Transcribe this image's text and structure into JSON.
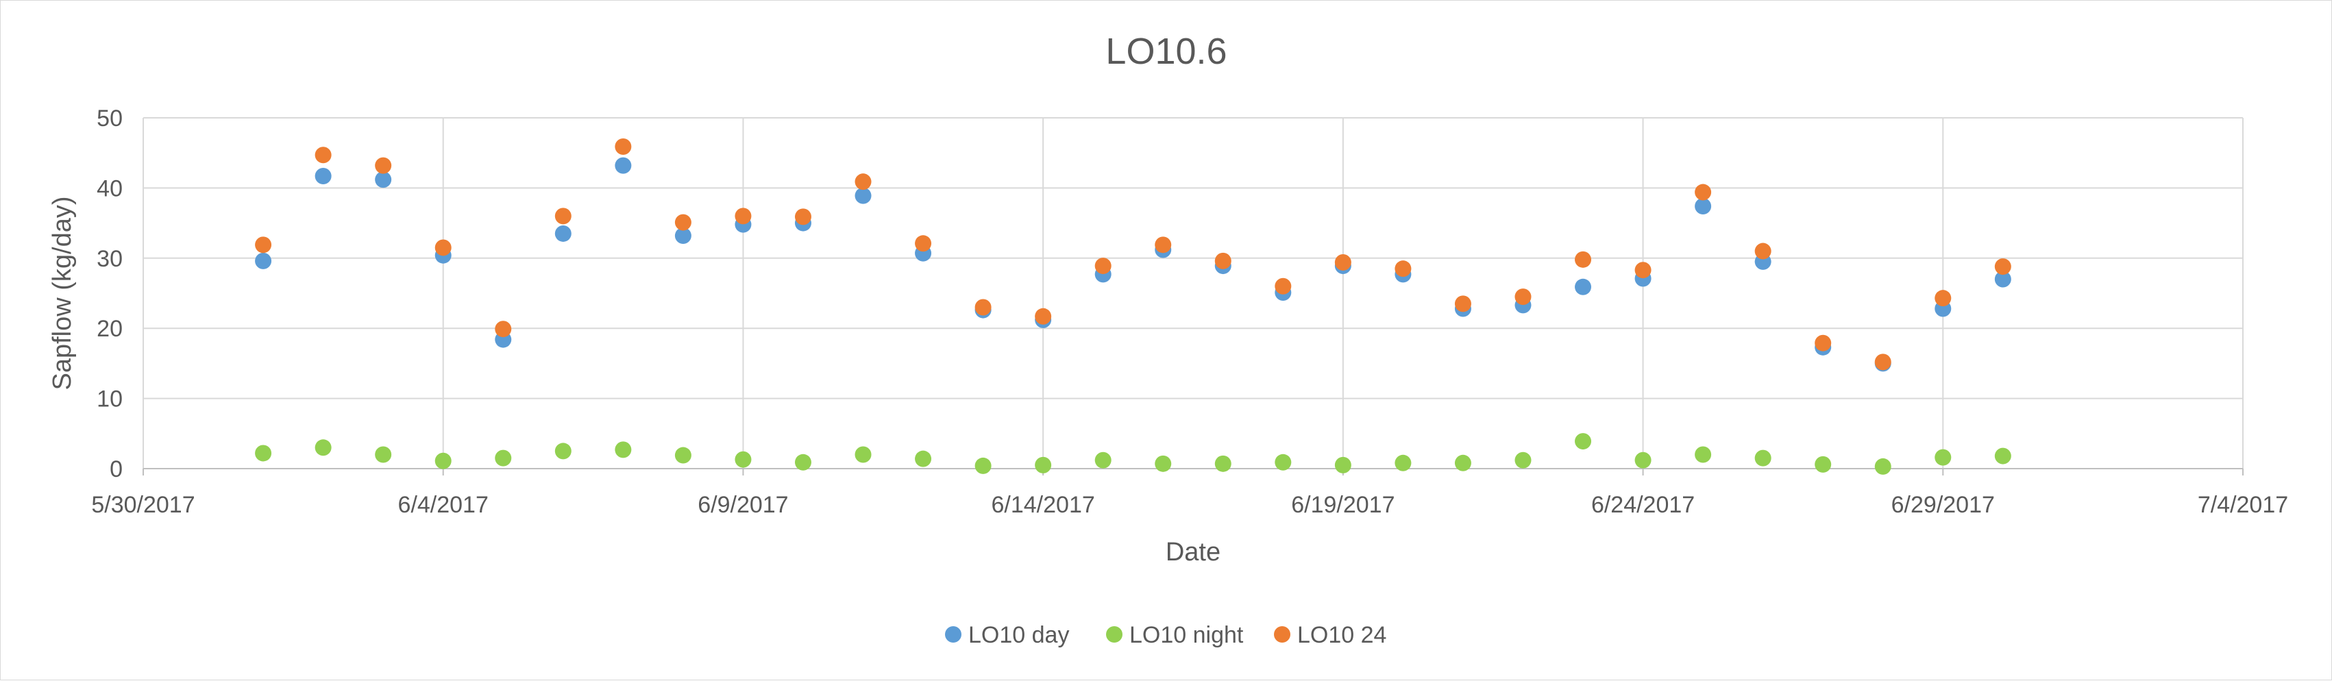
{
  "chart_data": {
    "type": "scatter",
    "title": "LO10.6",
    "xlabel": "Date",
    "ylabel": "Sapflow (kg/day)",
    "xlim": [
      "5/30/2017",
      "7/4/2017"
    ],
    "ylim": [
      0,
      50
    ],
    "x_tick_labels": [
      "5/30/2017",
      "6/4/2017",
      "6/9/2017",
      "6/14/2017",
      "6/19/2017",
      "6/24/2017",
      "6/29/2017",
      "7/4/2017"
    ],
    "y_tick_labels": [
      "0",
      "10",
      "20",
      "30",
      "40",
      "50"
    ],
    "grid": true,
    "legend_position": "bottom",
    "x": [
      "6/1/2017",
      "6/2/2017",
      "6/3/2017",
      "6/4/2017",
      "6/5/2017",
      "6/6/2017",
      "6/7/2017",
      "6/8/2017",
      "6/9/2017",
      "6/10/2017",
      "6/11/2017",
      "6/12/2017",
      "6/13/2017",
      "6/14/2017",
      "6/15/2017",
      "6/16/2017",
      "6/17/2017",
      "6/18/2017",
      "6/19/2017",
      "6/20/2017",
      "6/21/2017",
      "6/22/2017",
      "6/23/2017",
      "6/24/2017",
      "6/25/2017",
      "6/26/2017",
      "6/27/2017",
      "6/28/2017",
      "6/29/2017",
      "6/30/2017"
    ],
    "series": [
      {
        "name": "LO10 day",
        "color": "#5b9bd5",
        "values": [
          29.6,
          41.7,
          41.2,
          30.4,
          18.4,
          33.5,
          43.2,
          33.2,
          34.8,
          35.0,
          38.9,
          30.7,
          22.6,
          21.2,
          27.7,
          31.2,
          28.9,
          25.1,
          28.9,
          27.7,
          22.8,
          23.3,
          25.9,
          27.1,
          37.4,
          29.5,
          17.3,
          15.0,
          22.8,
          27.0
        ]
      },
      {
        "name": "LO10 night",
        "color": "#92d050",
        "values": [
          2.2,
          3.0,
          2.0,
          1.1,
          1.5,
          2.5,
          2.7,
          1.9,
          1.3,
          0.9,
          2.0,
          1.4,
          0.4,
          0.5,
          1.2,
          0.7,
          0.7,
          0.9,
          0.5,
          0.8,
          0.8,
          1.2,
          3.9,
          1.2,
          2.0,
          1.5,
          0.6,
          0.3,
          1.6,
          1.8
        ]
      },
      {
        "name": "LO10 24",
        "color": "#ed7d31",
        "values": [
          31.9,
          44.7,
          43.2,
          31.5,
          19.9,
          36.0,
          45.9,
          35.1,
          36.0,
          35.9,
          40.9,
          32.1,
          23.0,
          21.7,
          28.9,
          31.9,
          29.6,
          26.0,
          29.4,
          28.5,
          23.5,
          24.5,
          29.8,
          28.3,
          39.4,
          31.0,
          17.9,
          15.2,
          24.3,
          28.8
        ]
      }
    ]
  }
}
